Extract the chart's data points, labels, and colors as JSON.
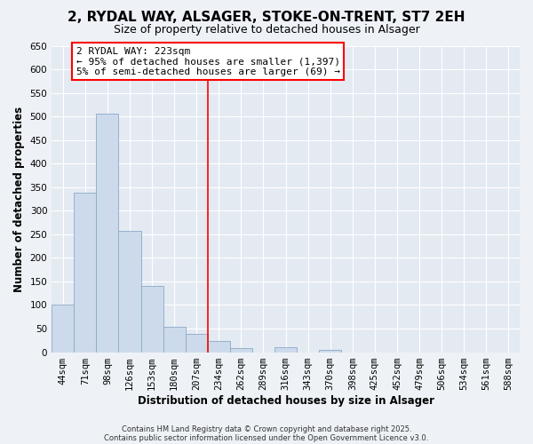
{
  "title": "2, RYDAL WAY, ALSAGER, STOKE-ON-TRENT, ST7 2EH",
  "subtitle": "Size of property relative to detached houses in Alsager",
  "xlabel": "Distribution of detached houses by size in Alsager",
  "ylabel": "Number of detached properties",
  "bar_color": "#cddaeb",
  "bar_edge_color": "#8aaac8",
  "categories": [
    "44sqm",
    "71sqm",
    "98sqm",
    "126sqm",
    "153sqm",
    "180sqm",
    "207sqm",
    "234sqm",
    "262sqm",
    "289sqm",
    "316sqm",
    "343sqm",
    "370sqm",
    "398sqm",
    "425sqm",
    "452sqm",
    "479sqm",
    "506sqm",
    "534sqm",
    "561sqm",
    "588sqm"
  ],
  "values": [
    100,
    338,
    505,
    257,
    140,
    53,
    38,
    23,
    8,
    0,
    11,
    0,
    4,
    0,
    0,
    0,
    0,
    0,
    0,
    0,
    0
  ],
  "ylim": [
    0,
    650
  ],
  "yticks": [
    0,
    50,
    100,
    150,
    200,
    250,
    300,
    350,
    400,
    450,
    500,
    550,
    600,
    650
  ],
  "annotation_title": "2 RYDAL WAY: 223sqm",
  "annotation_line1": "← 95% of detached houses are smaller (1,397)",
  "annotation_line2": "5% of semi-detached houses are larger (69) →",
  "vline_x": 6.5,
  "footnote1": "Contains HM Land Registry data © Crown copyright and database right 2025.",
  "footnote2": "Contains public sector information licensed under the Open Government Licence v3.0.",
  "bg_color": "#eef2f7",
  "plot_bg_color": "#e4eaf2",
  "grid_color": "#ffffff",
  "title_fontsize": 11,
  "subtitle_fontsize": 9,
  "axis_label_fontsize": 8.5,
  "tick_fontsize": 7.5,
  "annot_fontsize": 8
}
